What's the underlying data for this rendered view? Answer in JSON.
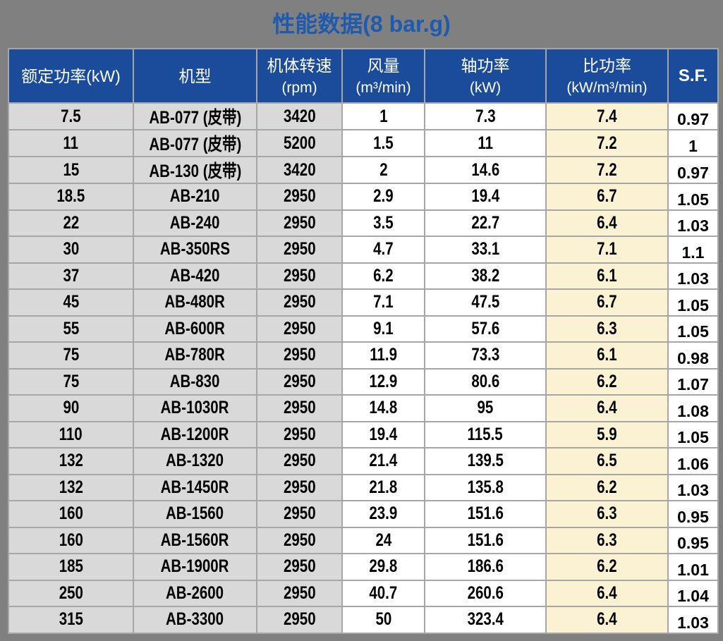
{
  "page_title": "性能数据(8 bar.g)",
  "colors": {
    "page_background": "#808080",
    "title_text": "#1E5AAE",
    "header_background": "#1B4C9C",
    "header_text": "#FFFFFF",
    "shaded_column_background": "#D9D9D9",
    "highlight_column_background": "#FBF1D3",
    "plain_cell_background": "#FFFFFF",
    "grid_border": "#A6A6A6"
  },
  "chart_data": {
    "type": "table",
    "title": "性能数据(8 bar.g)",
    "columns": [
      {
        "zh": "额定功率(kW)",
        "unit": ""
      },
      {
        "zh": "机型",
        "unit": ""
      },
      {
        "zh": "机体转速",
        "unit": "(rpm)"
      },
      {
        "zh": "风量",
        "unit": "(m³/min)"
      },
      {
        "zh": "轴功率",
        "unit": "(kW)"
      },
      {
        "zh": "比功率",
        "unit": "(kW/m³/min)"
      },
      {
        "zh": "S.F.",
        "unit": ""
      }
    ],
    "rows": [
      [
        "7.5",
        "AB-077 (皮带)",
        "3420",
        "1",
        "7.3",
        "7.4",
        "0.97"
      ],
      [
        "11",
        "AB-077 (皮带)",
        "5200",
        "1.5",
        "11",
        "7.2",
        "1"
      ],
      [
        "15",
        "AB-130 (皮带)",
        "3420",
        "2",
        "14.6",
        "7.2",
        "0.97"
      ],
      [
        "18.5",
        "AB-210",
        "2950",
        "2.9",
        "19.4",
        "6.7",
        "1.05"
      ],
      [
        "22",
        "AB-240",
        "2950",
        "3.5",
        "22.7",
        "6.4",
        "1.03"
      ],
      [
        "30",
        "AB-350RS",
        "2950",
        "4.7",
        "33.1",
        "7.1",
        "1.1"
      ],
      [
        "37",
        "AB-420",
        "2950",
        "6.2",
        "38.2",
        "6.1",
        "1.03"
      ],
      [
        "45",
        "AB-480R",
        "2950",
        "7.1",
        "47.5",
        "6.7",
        "1.05"
      ],
      [
        "55",
        "AB-600R",
        "2950",
        "9.1",
        "57.6",
        "6.3",
        "1.05"
      ],
      [
        "75",
        "AB-780R",
        "2950",
        "11.9",
        "73.3",
        "6.1",
        "0.98"
      ],
      [
        "75",
        "AB-830",
        "2950",
        "12.9",
        "80.6",
        "6.2",
        "1.07"
      ],
      [
        "90",
        "AB-1030R",
        "2950",
        "14.8",
        "95",
        "6.4",
        "1.08"
      ],
      [
        "110",
        "AB-1200R",
        "2950",
        "19.4",
        "115.5",
        "5.9",
        "1.05"
      ],
      [
        "132",
        "AB-1320",
        "2950",
        "21.4",
        "139.5",
        "6.5",
        "1.06"
      ],
      [
        "132",
        "AB-1450R",
        "2950",
        "21.8",
        "135.8",
        "6.2",
        "1.03"
      ],
      [
        "160",
        "AB-1560",
        "2950",
        "23.9",
        "151.6",
        "6.3",
        "0.95"
      ],
      [
        "160",
        "AB-1560R",
        "2950",
        "24",
        "151.6",
        "6.3",
        "0.95"
      ],
      [
        "185",
        "AB-1900R",
        "2950",
        "29.8",
        "186.6",
        "6.2",
        "1.01"
      ],
      [
        "250",
        "AB-2600",
        "2950",
        "40.7",
        "260.6",
        "6.4",
        "1.04"
      ],
      [
        "315",
        "AB-3300",
        "2950",
        "50",
        "323.4",
        "6.4",
        "1.03"
      ]
    ],
    "layout_hints": {
      "header_lines": 2,
      "highlight_column_index": 5,
      "shaded_column_indexes": [
        0,
        1,
        2
      ],
      "grid": true
    }
  }
}
